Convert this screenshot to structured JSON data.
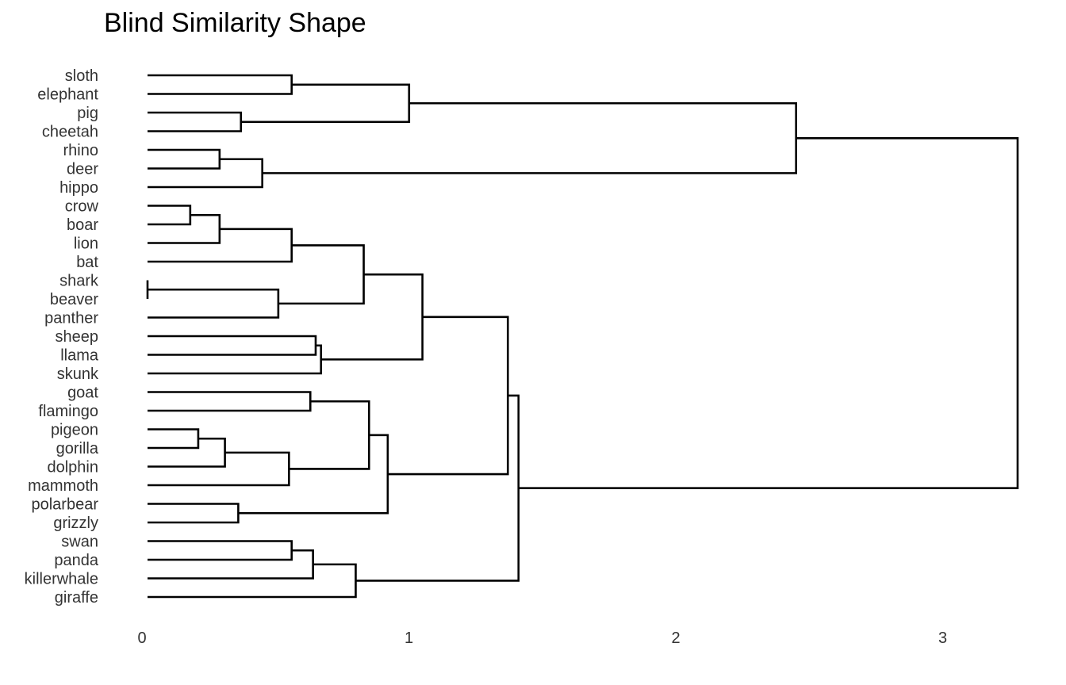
{
  "chart_data": {
    "type": "dendrogram",
    "orientation": "horizontal",
    "title": "Blind Similarity Shape",
    "xlabel": "",
    "ylabel": "",
    "xlim": [
      0,
      3.3
    ],
    "x_ticks": [
      0,
      1,
      2,
      3
    ],
    "grid": false,
    "legend": "none",
    "leaves": [
      "sloth",
      "elephant",
      "pig",
      "cheetah",
      "rhino",
      "deer",
      "hippo",
      "crow",
      "boar",
      "lion",
      "bat",
      "shark",
      "beaver",
      "panther",
      "sheep",
      "llama",
      "skunk",
      "goat",
      "flamingo",
      "pigeon",
      "gorilla",
      "dolphin",
      "mammoth",
      "polarbear",
      "grizzly",
      "swan",
      "panda",
      "killerwhale",
      "giraffe"
    ],
    "merges": [
      {
        "id": "m1",
        "left": "sloth",
        "right": "elephant",
        "height": 0.54
      },
      {
        "id": "m2",
        "left": "pig",
        "right": "cheetah",
        "height": 0.35
      },
      {
        "id": "m3",
        "left": "m1",
        "right": "m2",
        "height": 0.98
      },
      {
        "id": "m4",
        "left": "rhino",
        "right": "deer",
        "height": 0.27
      },
      {
        "id": "m5",
        "left": "m4",
        "right": "hippo",
        "height": 0.43
      },
      {
        "id": "m6",
        "left": "m3",
        "right": "m5",
        "height": 2.43
      },
      {
        "id": "m7",
        "left": "crow",
        "right": "boar",
        "height": 0.16
      },
      {
        "id": "m8",
        "left": "m7",
        "right": "lion",
        "height": 0.27
      },
      {
        "id": "m9",
        "left": "m8",
        "right": "bat",
        "height": 0.54
      },
      {
        "id": "m10",
        "left": "shark",
        "right": "beaver",
        "height": 0.0
      },
      {
        "id": "m11",
        "left": "m10",
        "right": "panther",
        "height": 0.49
      },
      {
        "id": "m12",
        "left": "m9",
        "right": "m11",
        "height": 0.81
      },
      {
        "id": "m13",
        "left": "sheep",
        "right": "llama",
        "height": 0.63
      },
      {
        "id": "m14",
        "left": "m13",
        "right": "skunk",
        "height": 0.65
      },
      {
        "id": "m15",
        "left": "m12",
        "right": "m14",
        "height": 1.03
      },
      {
        "id": "m16",
        "left": "goat",
        "right": "flamingo",
        "height": 0.61
      },
      {
        "id": "m17",
        "left": "pigeon",
        "right": "gorilla",
        "height": 0.19
      },
      {
        "id": "m18",
        "left": "m17",
        "right": "dolphin",
        "height": 0.29
      },
      {
        "id": "m19",
        "left": "m18",
        "right": "mammoth",
        "height": 0.53
      },
      {
        "id": "m20",
        "left": "m16",
        "right": "m19",
        "height": 0.83
      },
      {
        "id": "m21",
        "left": "polarbear",
        "right": "grizzly",
        "height": 0.34
      },
      {
        "id": "m22",
        "left": "m20",
        "right": "m21",
        "height": 0.9
      },
      {
        "id": "m23",
        "left": "m15",
        "right": "m22",
        "height": 1.35
      },
      {
        "id": "m24",
        "left": "swan",
        "right": "panda",
        "height": 0.54
      },
      {
        "id": "m25",
        "left": "m24",
        "right": "killerwhale",
        "height": 0.62
      },
      {
        "id": "m26",
        "left": "m25",
        "right": "giraffe",
        "height": 0.78
      },
      {
        "id": "m27",
        "left": "m23",
        "right": "m26",
        "height": 1.39
      },
      {
        "id": "m28",
        "left": "m6",
        "right": "m27",
        "height": 3.26
      }
    ]
  },
  "colors": {
    "line": "#000000",
    "text": "#333333",
    "background": "#ffffff"
  }
}
